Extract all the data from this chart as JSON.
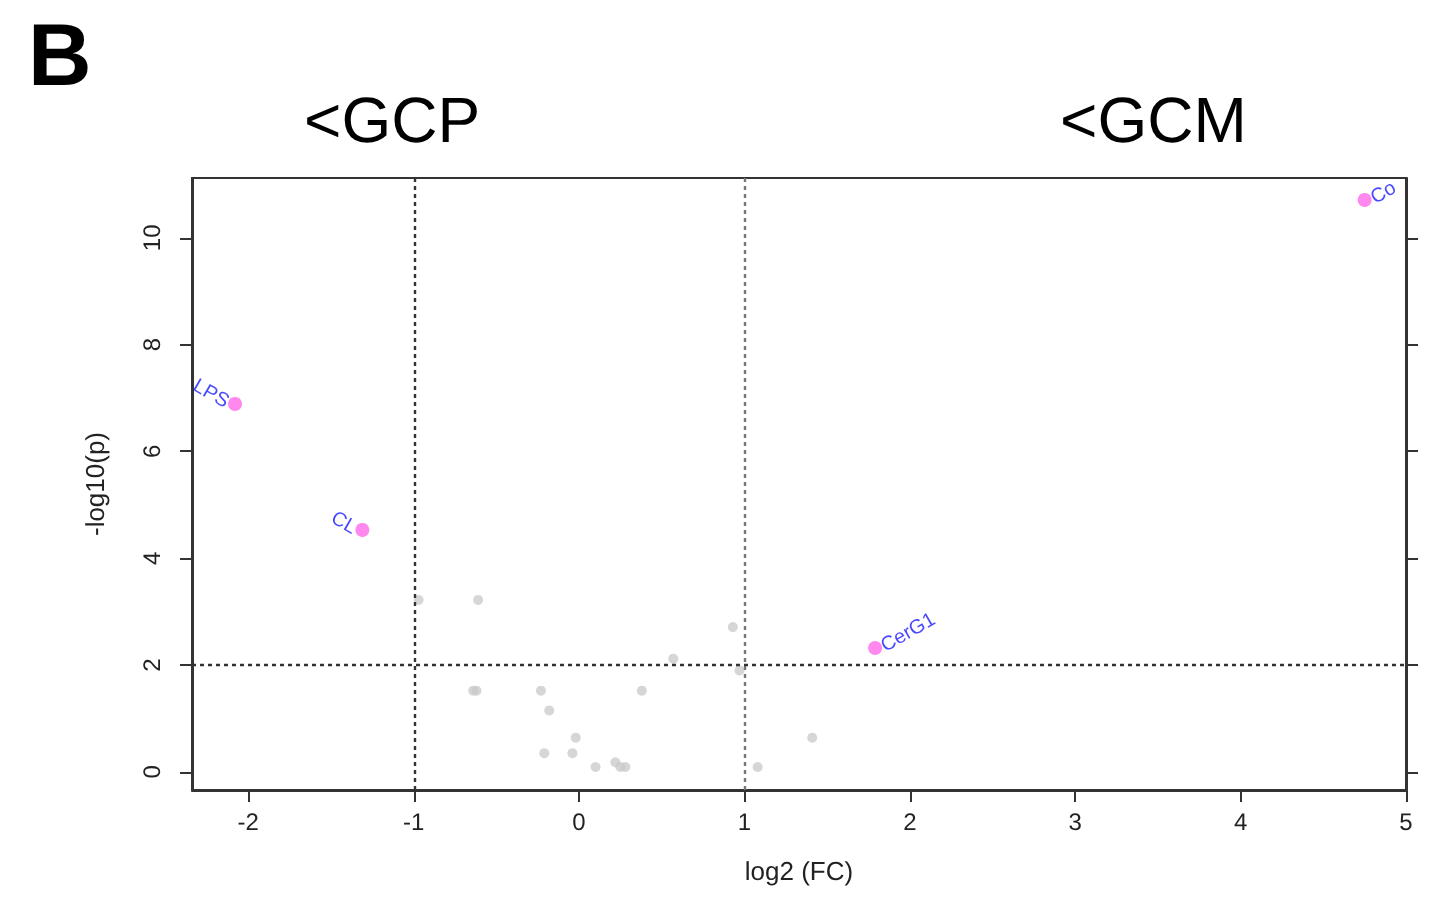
{
  "chart_data": {
    "type": "scatter",
    "xlabel": "log2 (FC)",
    "ylabel": "-log10(p)",
    "xlim": [
      -2.34,
      5.0
    ],
    "xticks": [
      -2,
      -1,
      0,
      1,
      2,
      3,
      4,
      5
    ],
    "ylim": [
      -0.34,
      11.12
    ],
    "yticks": [
      0,
      2,
      4,
      6,
      8,
      10
    ],
    "grid": false,
    "marker": "circle",
    "series": [
      {
        "color": "#c8c8c8",
        "x": [
          -0.97,
          -0.61,
          0.57,
          0.93,
          0.97,
          -0.64,
          -0.62,
          -0.23,
          0.38,
          -0.18,
          -0.02,
          -0.21,
          -0.04,
          0.1,
          0.22,
          0.25,
          0.28,
          1.08,
          1.41
        ],
        "values": [
          3.22,
          3.22,
          2.12,
          2.71,
          1.9,
          1.52,
          1.52,
          1.52,
          1.52,
          1.15,
          0.64,
          0.35,
          0.35,
          0.09,
          0.18,
          0.09,
          0.09,
          0.09,
          0.64
        ]
      },
      {
        "color": "#ff88ee",
        "x": [
          -2.08,
          -1.31,
          1.79,
          4.75
        ],
        "values": [
          6.89,
          4.53,
          2.32,
          10.71
        ]
      }
    ],
    "ref_lines": [
      {
        "axis": "x",
        "value": -1,
        "line_style": "dotted",
        "color": "#333333"
      },
      {
        "axis": "x",
        "value": 1,
        "line_style": "dotted",
        "color": "#777777"
      },
      {
        "axis": "y",
        "value": 2,
        "line_style": "dotted",
        "color": "#333333"
      }
    ],
    "annotations": [
      "B",
      "<GCP",
      "<GCM",
      {
        "text": "LPS",
        "x": -2.08,
        "y": 6.89
      },
      {
        "text": "CL",
        "x": -1.31,
        "y": 4.53
      },
      {
        "text": "CerG1",
        "x": 1.79,
        "y": 2.32
      },
      {
        "text": "Co",
        "x": 4.75,
        "y": 10.71
      }
    ]
  }
}
